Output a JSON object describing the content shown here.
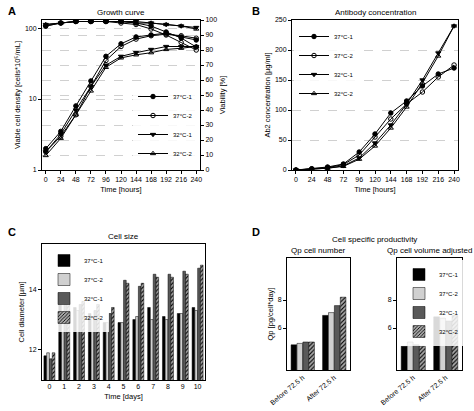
{
  "chart_data": [
    {
      "type": "line",
      "annotations": [
        "A"
      ],
      "title": "Growth curve",
      "x_label": "Time [hours]",
      "y_label": "Viable cell density [cells*10⁵/mL]",
      "y2_label": "Viability [%]",
      "x": [
        0,
        24,
        48,
        72,
        96,
        120,
        144,
        168,
        192,
        216,
        240
      ],
      "xlim": [
        -6,
        246
      ],
      "xticks": [
        0,
        24,
        48,
        72,
        96,
        120,
        144,
        168,
        192,
        216,
        240
      ],
      "ylim": [
        1,
        130
      ],
      "yticks": [
        1,
        10,
        100
      ],
      "y2lim": [
        0,
        100
      ],
      "y2ticks": [
        0,
        10,
        20,
        30,
        40,
        50,
        60,
        70,
        80,
        90,
        100
      ],
      "log": "y",
      "grid": true,
      "legend": "lower right",
      "series": [
        {
          "name": "37°C-1",
          "color": "#000000",
          "marker": "circle",
          "values": [
            2,
            3.5,
            8,
            18,
            40,
            60,
            75,
            80,
            85,
            75,
            68
          ]
        },
        {
          "name": "37°C-2",
          "color": "#000000",
          "marker": "circle-open",
          "values": [
            1.8,
            3,
            6,
            15,
            35,
            55,
            70,
            78,
            82,
            78,
            72
          ]
        },
        {
          "name": "32°C-1",
          "color": "#000000",
          "marker": "triangle-down",
          "values": [
            1.8,
            3.2,
            7,
            15,
            30,
            40,
            45,
            50,
            55,
            55,
            55
          ]
        },
        {
          "name": "32°C-2",
          "color": "#000000",
          "marker": "triangle-up-open",
          "values": [
            1.6,
            2.8,
            6,
            13,
            28,
            38,
            42,
            45,
            50,
            52,
            55
          ]
        },
        {
          "name": "37°C-1",
          "color": "#000000",
          "marker": "circle",
          "axis": "y2",
          "values": [
            96,
            98,
            99,
            99,
            99,
            99,
            98,
            96,
            92,
            88,
            82
          ]
        },
        {
          "name": "37°C-2",
          "color": "#000000",
          "marker": "circle-open",
          "axis": "y2",
          "values": [
            96,
            98,
            99,
            99,
            99,
            98,
            97,
            94,
            90,
            85,
            80
          ]
        },
        {
          "name": "32°C-1",
          "color": "#000000",
          "marker": "triangle-down",
          "axis": "y2",
          "values": [
            97,
            98,
            99,
            99,
            99,
            99,
            99,
            98,
            97,
            96,
            95
          ]
        },
        {
          "name": "32°C-2",
          "color": "#000000",
          "marker": "triangle-up-open",
          "axis": "y2",
          "values": [
            97,
            98,
            99,
            99,
            99,
            99,
            98,
            98,
            97,
            96,
            94
          ]
        }
      ]
    },
    {
      "type": "line",
      "annotations": [
        "B"
      ],
      "title": "Antibody concentration",
      "x_label": "Time [hours]",
      "y_label": "Ab2 concentration [µg/ml]",
      "x": [
        0,
        24,
        48,
        72,
        96,
        120,
        144,
        168,
        192,
        216,
        240
      ],
      "xlim": [
        -6,
        246
      ],
      "xticks": [
        0,
        24,
        48,
        72,
        96,
        120,
        144,
        168,
        192,
        216,
        240
      ],
      "ylim": [
        0,
        250
      ],
      "yticks": [
        0,
        50,
        100,
        150,
        200,
        250
      ],
      "grid": true,
      "legend": "upper left",
      "series": [
        {
          "name": "37°C-1",
          "color": "#000000",
          "marker": "circle",
          "values": [
            0,
            2,
            5,
            10,
            30,
            60,
            95,
            115,
            140,
            160,
            170
          ]
        },
        {
          "name": "37°C-2",
          "color": "#000000",
          "marker": "circle-open",
          "values": [
            0,
            2,
            4,
            9,
            25,
            55,
            85,
            110,
            130,
            155,
            175
          ]
        },
        {
          "name": "32°C-1",
          "color": "#000000",
          "marker": "triangle-down",
          "values": [
            0,
            1,
            3,
            7,
            20,
            45,
            75,
            110,
            150,
            195,
            240
          ]
        },
        {
          "name": "32°C-2",
          "color": "#000000",
          "marker": "triangle-up-open",
          "values": [
            0,
            1,
            3,
            6,
            18,
            40,
            70,
            105,
            145,
            190,
            240
          ]
        }
      ]
    },
    {
      "type": "bar",
      "annotations": [
        "C"
      ],
      "title": "Cell size",
      "x_label": "Time [days]",
      "y_label": "Cell diameter [µm]",
      "categories": [
        "0",
        "1",
        "2",
        "3",
        "4",
        "5",
        "6",
        "7",
        "8",
        "9",
        "10"
      ],
      "ylim": [
        11,
        15.5
      ],
      "yticks": [
        12,
        14
      ],
      "grid": false,
      "legend": "upper left",
      "series": [
        {
          "name": "37°C-1",
          "color": "#000000",
          "values": [
            11.8,
            13.6,
            13.4,
            13.2,
            12.9,
            12.9,
            13.0,
            13.4,
            13.1,
            13.2,
            13.4
          ]
        },
        {
          "name": "37°C-2",
          "color": "#d0d0d0",
          "values": [
            11.9,
            13.6,
            13.3,
            13.1,
            12.9,
            12.9,
            13.1,
            13.0,
            13.0,
            13.2,
            13.3
          ]
        },
        {
          "name": "32°C-1",
          "color": "#595959",
          "values": [
            11.7,
            13.7,
            13.5,
            13.3,
            13.2,
            14.3,
            14.1,
            14.5,
            14.5,
            14.6,
            14.7
          ]
        },
        {
          "name": "32°C-2",
          "color": "#a6a6a6",
          "marker": "hatched",
          "values": [
            11.9,
            13.6,
            13.6,
            13.5,
            13.4,
            14.2,
            14.2,
            14.4,
            14.4,
            14.5,
            14.8
          ]
        }
      ]
    },
    {
      "type": "bar",
      "annotations": [
        "D",
        "Cell specific productivity"
      ],
      "title": "Qp cell number",
      "y_label": "Qp [pg/cell*day]",
      "categories": [
        "Before 72.5 h",
        "After 72.5 h"
      ],
      "ylim": [
        3,
        11
      ],
      "yticks": [
        6,
        8
      ],
      "grid": false,
      "series": [
        {
          "name": "37°C-1",
          "color": "#000000",
          "values": [
            4.8,
            6.9
          ]
        },
        {
          "name": "37°C-2",
          "color": "#d0d0d0",
          "values": [
            4.9,
            7.1
          ]
        },
        {
          "name": "32°C-1",
          "color": "#595959",
          "values": [
            5.0,
            7.6
          ]
        },
        {
          "name": "32°C-2",
          "color": "#a6a6a6",
          "marker": "hatched",
          "values": [
            5.0,
            8.2
          ]
        }
      ]
    },
    {
      "type": "bar",
      "title": "Qp cell volume adjusted",
      "categories": [
        "Before 72.5 h",
        "After 72.5 h"
      ],
      "ylim": [
        3,
        11
      ],
      "yticks": [
        6,
        8
      ],
      "grid": false,
      "legend": "upper left",
      "series": [
        {
          "name": "37°C-1",
          "color": "#000000",
          "values": [
            4.7,
            6.8
          ]
        },
        {
          "name": "37°C-2",
          "color": "#d0d0d0",
          "values": [
            5.0,
            6.7
          ]
        },
        {
          "name": "32°C-1",
          "color": "#595959",
          "values": [
            4.8,
            6.5
          ]
        },
        {
          "name": "32°C-2",
          "color": "#a6a6a6",
          "marker": "hatched",
          "values": [
            4.7,
            6.9
          ]
        }
      ]
    }
  ]
}
